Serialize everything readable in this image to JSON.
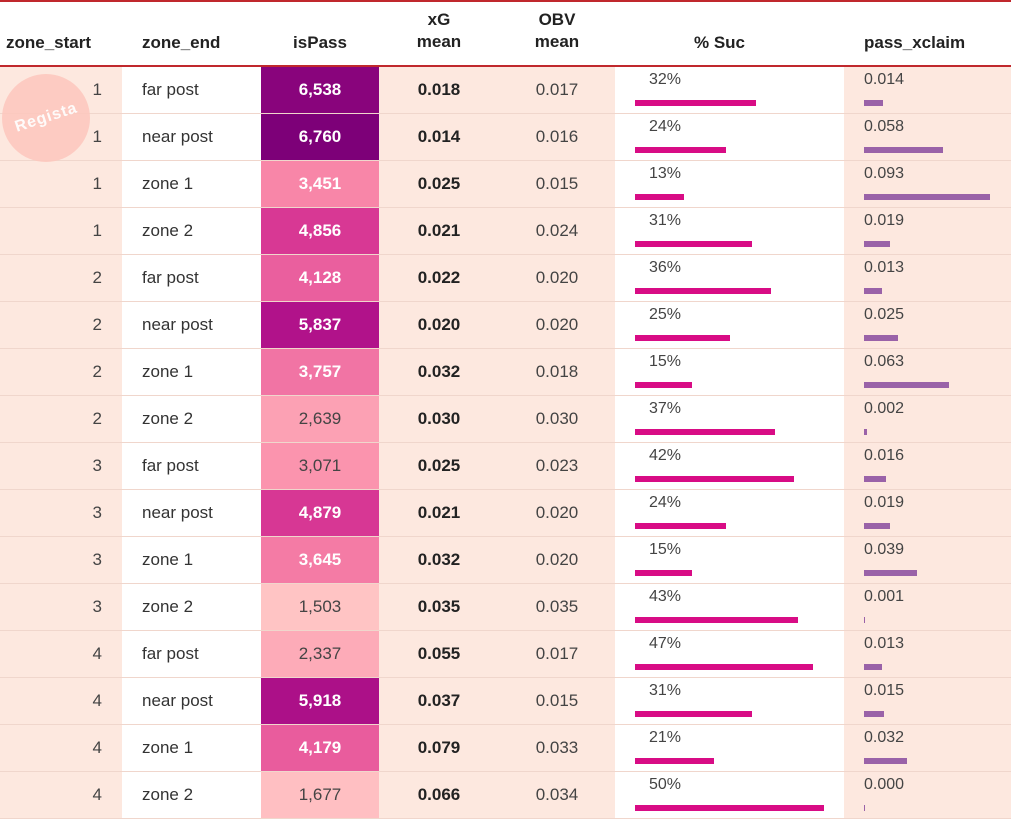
{
  "chart_data": {
    "type": "table",
    "columns": {
      "zone_start": "zone_start",
      "zone_end": "zone_end",
      "isPass": "isPass",
      "xg_line1": "xG",
      "xg_line2": "mean",
      "obv_line1": "OBV",
      "obv_line2": "mean",
      "suc": "% Suc",
      "xclaim": "pass_xclaim"
    },
    "watermark": "Regista",
    "bar_max": {
      "suc": 0.5,
      "xclaim": 0.093
    },
    "ispass_range": [
      1503,
      6760
    ],
    "rows": [
      {
        "zone_start": "1",
        "zone_end": "far post",
        "isPass": "6,538",
        "ispass_val": 6538,
        "xg": "0.018",
        "obv": "0.017",
        "suc": "32%",
        "suc_val": 0.32,
        "xclaim": "0.014",
        "xclaim_val": 0.014
      },
      {
        "zone_start": "1",
        "zone_end": "near post",
        "isPass": "6,760",
        "ispass_val": 6760,
        "xg": "0.014",
        "obv": "0.016",
        "suc": "24%",
        "suc_val": 0.24,
        "xclaim": "0.058",
        "xclaim_val": 0.058
      },
      {
        "zone_start": "1",
        "zone_end": "zone 1",
        "isPass": "3,451",
        "ispass_val": 3451,
        "xg": "0.025",
        "obv": "0.015",
        "suc": "13%",
        "suc_val": 0.13,
        "xclaim": "0.093",
        "xclaim_val": 0.093
      },
      {
        "zone_start": "1",
        "zone_end": "zone 2",
        "isPass": "4,856",
        "ispass_val": 4856,
        "xg": "0.021",
        "obv": "0.024",
        "suc": "31%",
        "suc_val": 0.31,
        "xclaim": "0.019",
        "xclaim_val": 0.019
      },
      {
        "zone_start": "2",
        "zone_end": "far post",
        "isPass": "4,128",
        "ispass_val": 4128,
        "xg": "0.022",
        "obv": "0.020",
        "suc": "36%",
        "suc_val": 0.36,
        "xclaim": "0.013",
        "xclaim_val": 0.013
      },
      {
        "zone_start": "2",
        "zone_end": "near post",
        "isPass": "5,837",
        "ispass_val": 5837,
        "xg": "0.020",
        "obv": "0.020",
        "suc": "25%",
        "suc_val": 0.25,
        "xclaim": "0.025",
        "xclaim_val": 0.025
      },
      {
        "zone_start": "2",
        "zone_end": "zone 1",
        "isPass": "3,757",
        "ispass_val": 3757,
        "xg": "0.032",
        "obv": "0.018",
        "suc": "15%",
        "suc_val": 0.15,
        "xclaim": "0.063",
        "xclaim_val": 0.063
      },
      {
        "zone_start": "2",
        "zone_end": "zone 2",
        "isPass": "2,639",
        "ispass_val": 2639,
        "xg": "0.030",
        "obv": "0.030",
        "suc": "37%",
        "suc_val": 0.37,
        "xclaim": "0.002",
        "xclaim_val": 0.002
      },
      {
        "zone_start": "3",
        "zone_end": "far post",
        "isPass": "3,071",
        "ispass_val": 3071,
        "xg": "0.025",
        "obv": "0.023",
        "suc": "42%",
        "suc_val": 0.42,
        "xclaim": "0.016",
        "xclaim_val": 0.016
      },
      {
        "zone_start": "3",
        "zone_end": "near post",
        "isPass": "4,879",
        "ispass_val": 4879,
        "xg": "0.021",
        "obv": "0.020",
        "suc": "24%",
        "suc_val": 0.24,
        "xclaim": "0.019",
        "xclaim_val": 0.019
      },
      {
        "zone_start": "3",
        "zone_end": "zone 1",
        "isPass": "3,645",
        "ispass_val": 3645,
        "xg": "0.032",
        "obv": "0.020",
        "suc": "15%",
        "suc_val": 0.15,
        "xclaim": "0.039",
        "xclaim_val": 0.039
      },
      {
        "zone_start": "3",
        "zone_end": "zone 2",
        "isPass": "1,503",
        "ispass_val": 1503,
        "xg": "0.035",
        "obv": "0.035",
        "suc": "43%",
        "suc_val": 0.43,
        "xclaim": "0.001",
        "xclaim_val": 0.001
      },
      {
        "zone_start": "4",
        "zone_end": "far post",
        "isPass": "2,337",
        "ispass_val": 2337,
        "xg": "0.055",
        "obv": "0.017",
        "suc": "47%",
        "suc_val": 0.47,
        "xclaim": "0.013",
        "xclaim_val": 0.013
      },
      {
        "zone_start": "4",
        "zone_end": "near post",
        "isPass": "5,918",
        "ispass_val": 5918,
        "xg": "0.037",
        "obv": "0.015",
        "suc": "31%",
        "suc_val": 0.31,
        "xclaim": "0.015",
        "xclaim_val": 0.015
      },
      {
        "zone_start": "4",
        "zone_end": "zone 1",
        "isPass": "4,179",
        "ispass_val": 4179,
        "xg": "0.079",
        "obv": "0.033",
        "suc": "21%",
        "suc_val": 0.21,
        "xclaim": "0.032",
        "xclaim_val": 0.032
      },
      {
        "zone_start": "4",
        "zone_end": "zone 2",
        "isPass": "1,677",
        "ispass_val": 1677,
        "xg": "0.066",
        "obv": "0.034",
        "suc": "50%",
        "suc_val": 0.5,
        "xclaim": "0.000",
        "xclaim_val": 0.0
      }
    ]
  }
}
